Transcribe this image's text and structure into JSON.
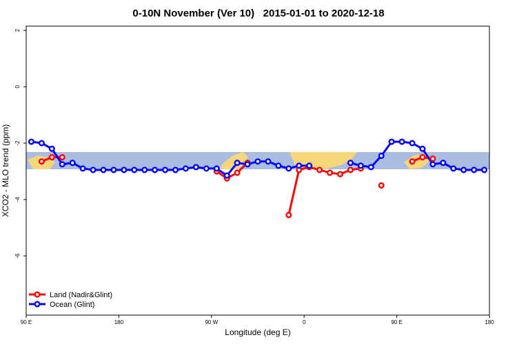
{
  "chart_data": {
    "type": "line",
    "title": "0-10N November (Ver 10)   2015-01-01 to 2020-12-18",
    "xlabel": "Longitude (deg E)",
    "ylabel": "XCO2 - MLO trend (ppm)",
    "xlim": [
      90,
      540
    ],
    "ylim": [
      -8.1,
      2.15
    ],
    "xticks": [
      {
        "value": 90,
        "label": "90 E"
      },
      {
        "value": 180,
        "label": "180"
      },
      {
        "value": 270,
        "label": "90 W"
      },
      {
        "value": 360,
        "label": "0"
      },
      {
        "value": 450,
        "label": "90 E"
      },
      {
        "value": 540,
        "label": "180"
      }
    ],
    "yticks": [
      -6,
      -4,
      -2,
      0,
      2
    ],
    "legend": "bottom-left",
    "x": [
      95,
      105,
      115,
      125,
      135,
      145,
      155,
      165,
      175,
      185,
      195,
      205,
      215,
      225,
      235,
      245,
      255,
      265,
      275,
      285,
      295,
      305,
      315,
      325,
      335,
      345,
      355,
      365,
      375,
      385,
      395,
      405,
      415,
      425,
      435,
      445,
      455,
      465,
      475,
      485,
      495,
      505,
      515,
      525,
      535
    ],
    "series": [
      {
        "name": "Land (Nadir&Glint)",
        "color": "#ff0000",
        "values": [
          null,
          -2.65,
          -2.5,
          -2.5,
          null,
          null,
          null,
          null,
          null,
          null,
          null,
          null,
          null,
          null,
          null,
          null,
          null,
          null,
          -3.0,
          -3.25,
          -3.05,
          -2.7,
          null,
          null,
          null,
          -4.55,
          -2.95,
          -2.85,
          -2.95,
          -3.05,
          -3.1,
          -2.95,
          -2.9,
          null,
          -3.5,
          null,
          null,
          -2.65,
          -2.5,
          -2.55,
          null,
          null,
          null,
          null,
          null
        ]
      },
      {
        "name": "Ocean (Glint)",
        "color": "#0000ff",
        "values": [
          -1.95,
          -2.0,
          -2.2,
          -2.75,
          -2.7,
          -2.9,
          -2.95,
          -2.95,
          -2.95,
          -2.95,
          -2.95,
          -2.95,
          -2.95,
          -2.95,
          -2.95,
          -2.9,
          -2.85,
          -2.9,
          -2.9,
          -3.15,
          -2.7,
          -2.75,
          -2.65,
          -2.65,
          -2.8,
          -2.9,
          -2.8,
          -2.8,
          null,
          null,
          null,
          -2.7,
          -2.8,
          -2.85,
          -2.45,
          -1.95,
          -1.95,
          -2.0,
          -2.2,
          -2.75,
          -2.7,
          -2.9,
          -2.95,
          -2.95,
          -2.95
        ]
      }
    ]
  }
}
